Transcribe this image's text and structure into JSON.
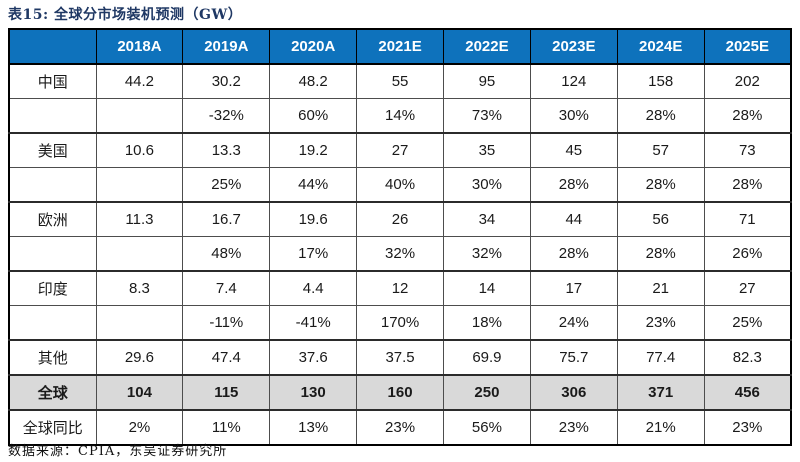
{
  "title": "表15:  全球分市场装机预测（GW）",
  "footer": "数据来源：CPIA，东吴证券研究所",
  "colors": {
    "header_bg": "#0E72BC",
    "header_text": "#FFFFFF",
    "title_text": "#1F3864",
    "shaded_row_bg": "#D9D9D9",
    "border": "#4d4d4d",
    "outer_border": "#000000"
  },
  "chart_data": {
    "type": "table",
    "columns": [
      "",
      "2018A",
      "2019A",
      "2020A",
      "2021E",
      "2022E",
      "2023E",
      "2024E",
      "2025E"
    ],
    "rows": [
      {
        "label": "中国",
        "values": [
          "44.2",
          "30.2",
          "48.2",
          "55",
          "95",
          "124",
          "158",
          "202"
        ],
        "shaded": false,
        "bold": false,
        "group_end": false
      },
      {
        "label": "",
        "values": [
          "",
          "-32%",
          "60%",
          "14%",
          "73%",
          "30%",
          "28%",
          "28%"
        ],
        "shaded": false,
        "bold": false,
        "group_end": true
      },
      {
        "label": "美国",
        "values": [
          "10.6",
          "13.3",
          "19.2",
          "27",
          "35",
          "45",
          "57",
          "73"
        ],
        "shaded": false,
        "bold": false,
        "group_end": false
      },
      {
        "label": "",
        "values": [
          "",
          "25%",
          "44%",
          "40%",
          "30%",
          "28%",
          "28%",
          "28%"
        ],
        "shaded": false,
        "bold": false,
        "group_end": true
      },
      {
        "label": "欧洲",
        "values": [
          "11.3",
          "16.7",
          "19.6",
          "26",
          "34",
          "44",
          "56",
          "71"
        ],
        "shaded": false,
        "bold": false,
        "group_end": false
      },
      {
        "label": "",
        "values": [
          "",
          "48%",
          "17%",
          "32%",
          "32%",
          "28%",
          "28%",
          "26%"
        ],
        "shaded": false,
        "bold": false,
        "group_end": true
      },
      {
        "label": "印度",
        "values": [
          "8.3",
          "7.4",
          "4.4",
          "12",
          "14",
          "17",
          "21",
          "27"
        ],
        "shaded": false,
        "bold": false,
        "group_end": false
      },
      {
        "label": "",
        "values": [
          "",
          "-11%",
          "-41%",
          "170%",
          "18%",
          "24%",
          "23%",
          "25%"
        ],
        "shaded": false,
        "bold": false,
        "group_end": true
      },
      {
        "label": "其他",
        "values": [
          "29.6",
          "47.4",
          "37.6",
          "37.5",
          "69.9",
          "75.7",
          "77.4",
          "82.3"
        ],
        "shaded": false,
        "bold": false,
        "group_end": true
      },
      {
        "label": "全球",
        "values": [
          "104",
          "115",
          "130",
          "160",
          "250",
          "306",
          "371",
          "456"
        ],
        "shaded": true,
        "bold": true,
        "group_end": true
      },
      {
        "label": "全球同比",
        "values": [
          "2%",
          "11%",
          "13%",
          "23%",
          "56%",
          "23%",
          "21%",
          "23%"
        ],
        "shaded": false,
        "bold": false,
        "group_end": false
      }
    ]
  }
}
